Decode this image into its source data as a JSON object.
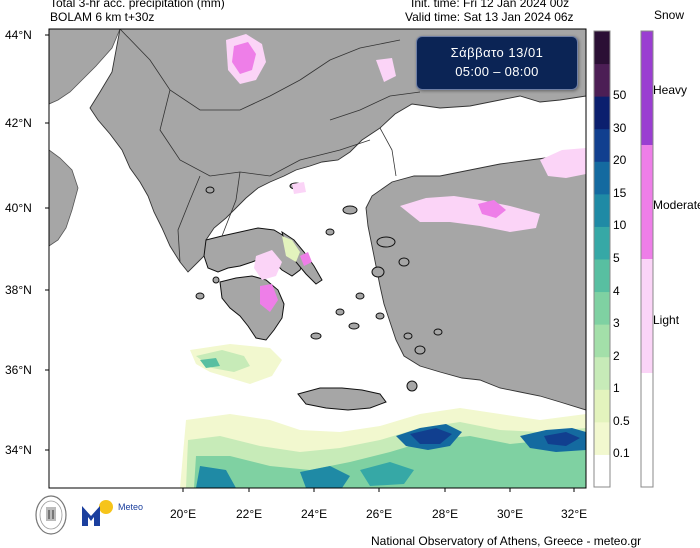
{
  "header": {
    "title_line1": "Total 3-hr acc. precipitation (mm)",
    "title_line2": "BOLAM 6 km t+30z",
    "init_time": "Init. time: Fri 12 Jan 2024 00z",
    "valid_time": "Valid time: Sat 13 Jan 2024 06z"
  },
  "date_box": {
    "day": "Σάββατο 13/01",
    "hours": "05:00 – 08:00"
  },
  "axes": {
    "lat_labels": [
      "44°N",
      "42°N",
      "40°N",
      "38°N",
      "36°N",
      "34°N"
    ],
    "lon_labels": [
      "20°E",
      "22°E",
      "24°E",
      "26°E",
      "28°E",
      "30°E",
      "32°E"
    ]
  },
  "precip_colorbar": {
    "labels": [
      "0.1",
      "0.5",
      "1",
      "2",
      "3",
      "4",
      "5",
      "10",
      "15",
      "20",
      "30",
      "50"
    ],
    "colors": [
      "#ffffff",
      "#f2f8cf",
      "#e3f3bd",
      "#c7ebb8",
      "#a3dfa9",
      "#7fd1a2",
      "#58bfa1",
      "#36a8a6",
      "#1f8aa5",
      "#146aa0",
      "#113f8f",
      "#0b1f6e",
      "#4c1e55",
      "#2b0f35"
    ]
  },
  "snow_colorbar": {
    "title": "Snow",
    "labels": [
      "Heavy",
      "Moderate",
      "Light"
    ],
    "colors": [
      "#9a3ed1",
      "#ee7ee8",
      "#fbd4f7",
      "#ffffff"
    ]
  },
  "footer": {
    "credit": "National Observatory of Athens, Greece - meteo.gr",
    "logo_text": "Meteo"
  },
  "colors": {
    "land": "#a6a6a6",
    "sea": "#ffffff",
    "date_box_bg": "#0b2455"
  }
}
